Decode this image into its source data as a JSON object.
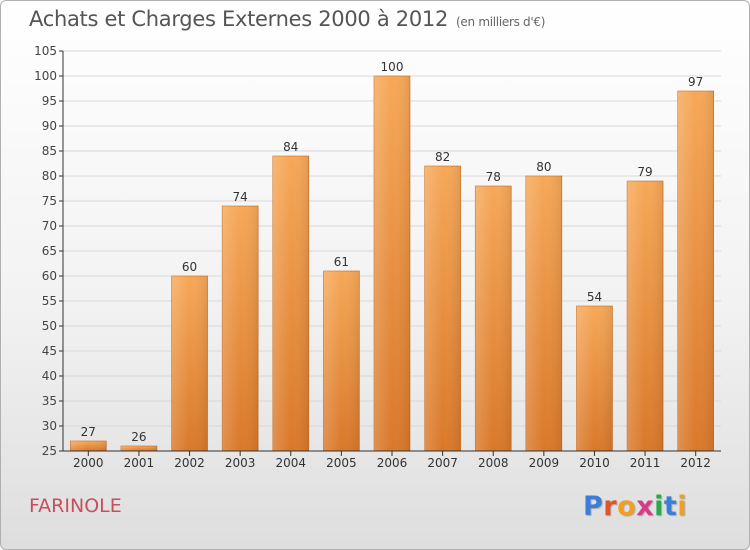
{
  "header": {
    "title": "Achats et Charges Externes 2000 à 2012",
    "unit": "(en milliers d'€)"
  },
  "footer": {
    "commune": "FARINOLE",
    "brand_letters": [
      "P",
      "r",
      "o",
      "x",
      "i",
      "t",
      "i"
    ],
    "brand_colors": [
      "#3a7fd5",
      "#e0542a",
      "#f0a020",
      "#d83a8a",
      "#2aa84a",
      "#3a7fd5",
      "#f0a020"
    ]
  },
  "colors": {
    "bar_top": "#f6a858",
    "bar_bottom": "#d9782a",
    "axis": "#333333",
    "grid": "#d8d8d8",
    "title": "#555555",
    "commune": "#c84f60"
  },
  "chart_data": {
    "type": "bar",
    "categories": [
      "2000",
      "2001",
      "2002",
      "2003",
      "2004",
      "2005",
      "2006",
      "2007",
      "2008",
      "2009",
      "2010",
      "2011",
      "2012"
    ],
    "values": [
      27,
      26,
      60,
      74,
      84,
      61,
      100,
      82,
      78,
      80,
      54,
      79,
      97
    ],
    "ylim": [
      25,
      105
    ],
    "yticks": [
      25,
      30,
      35,
      40,
      45,
      50,
      55,
      60,
      65,
      70,
      75,
      80,
      85,
      90,
      95,
      100,
      105
    ],
    "data_labels": true,
    "grid": true
  }
}
